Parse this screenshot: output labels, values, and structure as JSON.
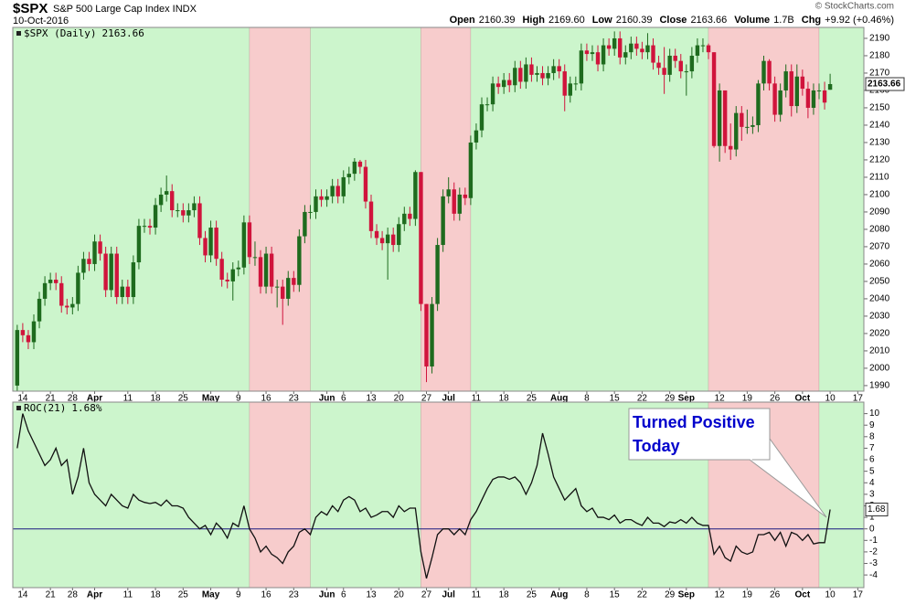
{
  "header": {
    "symbol": "$SPX",
    "name": "S&P 500 Large Cap Index INDX",
    "date": "10-Oct-2016",
    "credit": "© StockCharts.com",
    "fields": [
      {
        "label": "Open",
        "value": "2160.39"
      },
      {
        "label": "High",
        "value": "2169.60"
      },
      {
        "label": "Low",
        "value": "2160.39"
      },
      {
        "label": "Close",
        "value": "2163.66"
      },
      {
        "label": "Volume",
        "value": "1.7B"
      },
      {
        "label": "Chg",
        "value": "+9.92 (+0.46%)"
      }
    ]
  },
  "chart_data": [
    {
      "type": "candlestick",
      "name": "$SPX (Daily)",
      "legend_value": "2163.66",
      "up_color": "#1e6b1e",
      "down_color": "#d0143c",
      "open": [
        1990,
        2022,
        2019,
        2015,
        2027,
        2040,
        2049,
        2051,
        2049,
        2036,
        2035,
        2037,
        2055,
        2063,
        2060,
        2073,
        2066,
        2045,
        2066,
        2041,
        2047,
        2041,
        2061,
        2082,
        2082,
        2081,
        2094,
        2100,
        2102,
        2091,
        2091,
        2088,
        2091,
        2095,
        2075,
        2065,
        2081,
        2063,
        2051,
        2050,
        2057,
        2058,
        2084,
        2064,
        2064,
        2047,
        2066,
        2047,
        2047,
        2040,
        2052,
        2048,
        2076,
        2090,
        2090,
        2099,
        2097,
        2099,
        2105,
        2099,
        2110,
        2112,
        2119,
        2116,
        2096,
        2079,
        2075,
        2072,
        2077,
        2071,
        2083,
        2089,
        2086,
        2113,
        2037,
        2001,
        2037,
        2071,
        2099,
        2103,
        2089,
        2100,
        2098,
        2130,
        2137,
        2152,
        2152,
        2164,
        2162,
        2166,
        2163,
        2173,
        2165,
        2175,
        2169,
        2170,
        2167,
        2170,
        2174,
        2171,
        2157,
        2164,
        2164,
        2183,
        2181,
        2182,
        2175,
        2186,
        2184,
        2190,
        2179,
        2182,
        2187,
        2184,
        2182,
        2186,
        2176,
        2173,
        2169,
        2180,
        2177,
        2171,
        2171,
        2180,
        2186,
        2186,
        2182,
        2128,
        2160,
        2128,
        2126,
        2147,
        2139,
        2139,
        2140,
        2164,
        2177,
        2164,
        2146,
        2160,
        2171,
        2151,
        2168,
        2161,
        2150,
        2160,
        2160,
        2160.39
      ],
      "high": [
        2025,
        2026,
        2022,
        2031,
        2044,
        2053,
        2055,
        2055,
        2053,
        2040,
        2041,
        2059,
        2067,
        2067,
        2077,
        2077,
        2070,
        2070,
        2070,
        2051,
        2051,
        2065,
        2086,
        2086,
        2086,
        2098,
        2104,
        2111,
        2106,
        2095,
        2095,
        2095,
        2099,
        2099,
        2079,
        2085,
        2085,
        2067,
        2055,
        2061,
        2062,
        2088,
        2088,
        2073,
        2068,
        2070,
        2070,
        2051,
        2051,
        2056,
        2056,
        2080,
        2094,
        2094,
        2103,
        2103,
        2103,
        2109,
        2109,
        2114,
        2116,
        2121,
        2120,
        2120,
        2100,
        2083,
        2079,
        2081,
        2081,
        2087,
        2093,
        2093,
        2114,
        2113,
        2037,
        2041,
        2075,
        2103,
        2110,
        2107,
        2104,
        2104,
        2134,
        2141,
        2156,
        2156,
        2168,
        2168,
        2170,
        2170,
        2177,
        2177,
        2179,
        2179,
        2174,
        2174,
        2174,
        2178,
        2178,
        2175,
        2168,
        2168,
        2187,
        2187,
        2186,
        2186,
        2190,
        2190,
        2194,
        2194,
        2186,
        2191,
        2191,
        2188,
        2193,
        2190,
        2180,
        2185,
        2184,
        2184,
        2181,
        2175,
        2185,
        2190,
        2190,
        2187,
        2182,
        2164,
        2160,
        2141,
        2151,
        2151,
        2149,
        2145,
        2166,
        2180,
        2178,
        2168,
        2164,
        2175,
        2175,
        2175,
        2172,
        2165,
        2164,
        2164,
        2165,
        2169.6
      ],
      "low": [
        1987,
        2015,
        2011,
        2011,
        2023,
        2036,
        2045,
        2045,
        2032,
        2031,
        2031,
        2033,
        2051,
        2056,
        2056,
        2062,
        2041,
        2041,
        2037,
        2037,
        2037,
        2037,
        2057,
        2078,
        2077,
        2077,
        2090,
        2096,
        2087,
        2087,
        2084,
        2084,
        2087,
        2071,
        2061,
        2061,
        2059,
        2047,
        2046,
        2039,
        2053,
        2054,
        2060,
        2059,
        2043,
        2043,
        2043,
        2035,
        2025,
        2036,
        2044,
        2044,
        2072,
        2086,
        2086,
        2093,
        2093,
        2095,
        2095,
        2095,
        2106,
        2108,
        2112,
        2092,
        2075,
        2071,
        2068,
        2051,
        2067,
        2067,
        2079,
        2082,
        2082,
        2033,
        1992,
        1997,
        2033,
        2067,
        2095,
        2085,
        2085,
        2094,
        2094,
        2126,
        2133,
        2148,
        2148,
        2158,
        2158,
        2159,
        2159,
        2161,
        2161,
        2165,
        2165,
        2163,
        2163,
        2166,
        2167,
        2148,
        2153,
        2160,
        2160,
        2177,
        2177,
        2171,
        2171,
        2180,
        2180,
        2175,
        2175,
        2178,
        2180,
        2178,
        2178,
        2172,
        2169,
        2158,
        2165,
        2173,
        2167,
        2157,
        2167,
        2176,
        2182,
        2178,
        2127,
        2119,
        2124,
        2120,
        2122,
        2131,
        2135,
        2135,
        2136,
        2160,
        2160,
        2142,
        2142,
        2156,
        2145,
        2147,
        2157,
        2144,
        2146,
        2155,
        2149,
        2160.39
      ],
      "close": [
        2022,
        2019,
        2015,
        2027,
        2040,
        2049,
        2051,
        2049,
        2036,
        2035,
        2037,
        2055,
        2063,
        2060,
        2073,
        2066,
        2045,
        2066,
        2041,
        2047,
        2041,
        2061,
        2082,
        2082,
        2081,
        2094,
        2100,
        2102,
        2091,
        2091,
        2088,
        2091,
        2095,
        2075,
        2065,
        2081,
        2063,
        2051,
        2050,
        2057,
        2058,
        2084,
        2064,
        2064,
        2047,
        2066,
        2047,
        2047,
        2040,
        2052,
        2048,
        2076,
        2090,
        2090,
        2099,
        2097,
        2099,
        2105,
        2099,
        2110,
        2112,
        2119,
        2116,
        2096,
        2079,
        2075,
        2072,
        2077,
        2071,
        2083,
        2089,
        2086,
        2113,
        2037,
        2001,
        2037,
        2071,
        2099,
        2103,
        2089,
        2100,
        2098,
        2130,
        2137,
        2152,
        2152,
        2164,
        2162,
        2166,
        2163,
        2173,
        2165,
        2175,
        2169,
        2170,
        2167,
        2170,
        2174,
        2171,
        2157,
        2164,
        2164,
        2183,
        2181,
        2182,
        2175,
        2186,
        2184,
        2190,
        2179,
        2182,
        2187,
        2184,
        2182,
        2186,
        2176,
        2173,
        2169,
        2180,
        2177,
        2171,
        2171,
        2180,
        2186,
        2186,
        2182,
        2128,
        2160,
        2128,
        2126,
        2147,
        2139,
        2139,
        2140,
        2164,
        2177,
        2164,
        2146,
        2160,
        2171,
        2151,
        2168,
        2161,
        2150,
        2160,
        2160,
        2153,
        2163.66
      ],
      "xlim": [
        -0.8,
        153.1
      ],
      "ylim": [
        1986.8,
        2196.3
      ],
      "yticks": [
        1990,
        2000,
        2010,
        2020,
        2030,
        2040,
        2050,
        2060,
        2070,
        2080,
        2090,
        2100,
        2110,
        2120,
        2130,
        2140,
        2150,
        2160,
        2170,
        2180,
        2190
      ],
      "xticks": [
        {
          "value": 1,
          "label": "14"
        },
        {
          "value": 6,
          "label": "21"
        },
        {
          "value": 10,
          "label": "28"
        },
        {
          "value": 14,
          "label": "Apr"
        },
        {
          "value": 20,
          "label": "11"
        },
        {
          "value": 25,
          "label": "18"
        },
        {
          "value": 30,
          "label": "25"
        },
        {
          "value": 35,
          "label": "May"
        },
        {
          "value": 40,
          "label": "9"
        },
        {
          "value": 45,
          "label": "16"
        },
        {
          "value": 50,
          "label": "23"
        },
        {
          "value": 56,
          "label": "Jun"
        },
        {
          "value": 59,
          "label": "6"
        },
        {
          "value": 64,
          "label": "13"
        },
        {
          "value": 69,
          "label": "20"
        },
        {
          "value": 74,
          "label": "27"
        },
        {
          "value": 78,
          "label": "Jul"
        },
        {
          "value": 83,
          "label": "11"
        },
        {
          "value": 88,
          "label": "18"
        },
        {
          "value": 93,
          "label": "25"
        },
        {
          "value": 98,
          "label": "Aug"
        },
        {
          "value": 103,
          "label": "8"
        },
        {
          "value": 108,
          "label": "15"
        },
        {
          "value": 113,
          "label": "22"
        },
        {
          "value": 118,
          "label": "29"
        },
        {
          "value": 121,
          "label": "Sep"
        },
        {
          "value": 127,
          "label": "12"
        },
        {
          "value": 132,
          "label": "19"
        },
        {
          "value": 137,
          "label": "26"
        },
        {
          "value": 142,
          "label": "Oct"
        },
        {
          "value": 147,
          "label": "10"
        },
        {
          "value": 152,
          "label": "17"
        }
      ],
      "bands": [
        {
          "start": -0.8,
          "end": 42,
          "color": "#ccf5cc"
        },
        {
          "start": 42,
          "end": 53,
          "color": "#f7cccc"
        },
        {
          "start": 53,
          "end": 73,
          "color": "#ccf5cc"
        },
        {
          "start": 73,
          "end": 82,
          "color": "#f7cccc"
        },
        {
          "start": 82,
          "end": 125,
          "color": "#ccf5cc"
        },
        {
          "start": 125,
          "end": 145,
          "color": "#f7cccc"
        },
        {
          "start": 145,
          "end": 153.1,
          "color": "#ccf5cc"
        }
      ]
    },
    {
      "type": "line",
      "name": "ROC(21)",
      "legend_value": "1.68%",
      "tag_label": "1.68",
      "color": "#111111",
      "values": [
        7,
        10,
        8.5,
        7.5,
        6.5,
        5.5,
        6,
        7,
        5.5,
        6,
        3,
        4.5,
        7,
        4,
        3,
        2.5,
        2,
        3,
        2.5,
        2,
        1.8,
        3,
        2.5,
        2.3,
        2.2,
        2.3,
        2,
        2.5,
        2,
        2,
        1.8,
        1,
        0.5,
        0,
        0.3,
        -0.5,
        0.5,
        0,
        -0.8,
        0.5,
        0.2,
        2,
        0,
        -0.8,
        -2,
        -1.5,
        -2.2,
        -2.5,
        -3,
        -2,
        -1.5,
        -0.3,
        0,
        -0.5,
        1,
        1.5,
        1.2,
        2,
        1.5,
        2.5,
        2.8,
        2.5,
        1.5,
        1.8,
        1,
        1.2,
        1.5,
        1.5,
        1,
        2,
        1.5,
        1.8,
        1.8,
        -2,
        -4.3,
        -2.5,
        -0.5,
        0,
        0,
        -0.5,
        0,
        -0.5,
        0.8,
        1.5,
        2.5,
        3.5,
        4.3,
        4.5,
        4.5,
        4.3,
        4.5,
        4,
        3,
        4,
        5.5,
        8.3,
        6.5,
        4.5,
        3.5,
        2.5,
        3,
        3.5,
        2,
        1.5,
        1.8,
        1,
        1,
        0.8,
        1.2,
        0.5,
        0.8,
        0.8,
        0.5,
        0.3,
        1,
        0.5,
        0.5,
        0.2,
        0.6,
        0.5,
        0.8,
        0.5,
        1,
        0.5,
        0.3,
        0.3,
        -2.2,
        -1.5,
        -2.5,
        -2.8,
        -1.5,
        -2,
        -2.2,
        -2,
        -0.5,
        -0.5,
        -0.3,
        -1,
        -0.3,
        -1.5,
        -0.3,
        -0.5,
        -1,
        -0.5,
        -1.3,
        -1.2,
        -1.2,
        1.68
      ],
      "hline": {
        "value": 0,
        "color": "#1a1a80"
      },
      "xlim": [
        -0.8,
        153.1
      ],
      "ylim": [
        -5.1,
        11
      ],
      "yticks": [
        -4,
        -3,
        -2,
        -1,
        0,
        1,
        2,
        3,
        4,
        5,
        6,
        7,
        8,
        9,
        10
      ],
      "xticks": [
        {
          "value": 1,
          "label": "14"
        },
        {
          "value": 6,
          "label": "21"
        },
        {
          "value": 10,
          "label": "28"
        },
        {
          "value": 14,
          "label": "Apr"
        },
        {
          "value": 20,
          "label": "11"
        },
        {
          "value": 25,
          "label": "18"
        },
        {
          "value": 30,
          "label": "25"
        },
        {
          "value": 35,
          "label": "May"
        },
        {
          "value": 40,
          "label": "9"
        },
        {
          "value": 45,
          "label": "16"
        },
        {
          "value": 50,
          "label": "23"
        },
        {
          "value": 56,
          "label": "Jun"
        },
        {
          "value": 59,
          "label": "6"
        },
        {
          "value": 64,
          "label": "13"
        },
        {
          "value": 69,
          "label": "20"
        },
        {
          "value": 74,
          "label": "27"
        },
        {
          "value": 78,
          "label": "Jul"
        },
        {
          "value": 83,
          "label": "11"
        },
        {
          "value": 88,
          "label": "18"
        },
        {
          "value": 93,
          "label": "25"
        },
        {
          "value": 98,
          "label": "Aug"
        },
        {
          "value": 103,
          "label": "8"
        },
        {
          "value": 108,
          "label": "15"
        },
        {
          "value": 113,
          "label": "22"
        },
        {
          "value": 118,
          "label": "29"
        },
        {
          "value": 121,
          "label": "Sep"
        },
        {
          "value": 127,
          "label": "12"
        },
        {
          "value": 132,
          "label": "19"
        },
        {
          "value": 137,
          "label": "26"
        },
        {
          "value": 142,
          "label": "Oct"
        },
        {
          "value": 147,
          "label": "10"
        },
        {
          "value": 152,
          "label": "17"
        }
      ],
      "bands": [
        {
          "start": -0.8,
          "end": 42,
          "color": "#ccf5cc"
        },
        {
          "start": 42,
          "end": 53,
          "color": "#f7cccc"
        },
        {
          "start": 53,
          "end": 73,
          "color": "#ccf5cc"
        },
        {
          "start": 73,
          "end": 82,
          "color": "#f7cccc"
        },
        {
          "start": 82,
          "end": 125,
          "color": "#ccf5cc"
        },
        {
          "start": 125,
          "end": 145,
          "color": "#f7cccc"
        },
        {
          "start": 145,
          "end": 153.1,
          "color": "#ccf5cc"
        }
      ],
      "annotation": {
        "lines": [
          "Turned Positive",
          "Today"
        ],
        "color": "#0000cc"
      }
    }
  ]
}
